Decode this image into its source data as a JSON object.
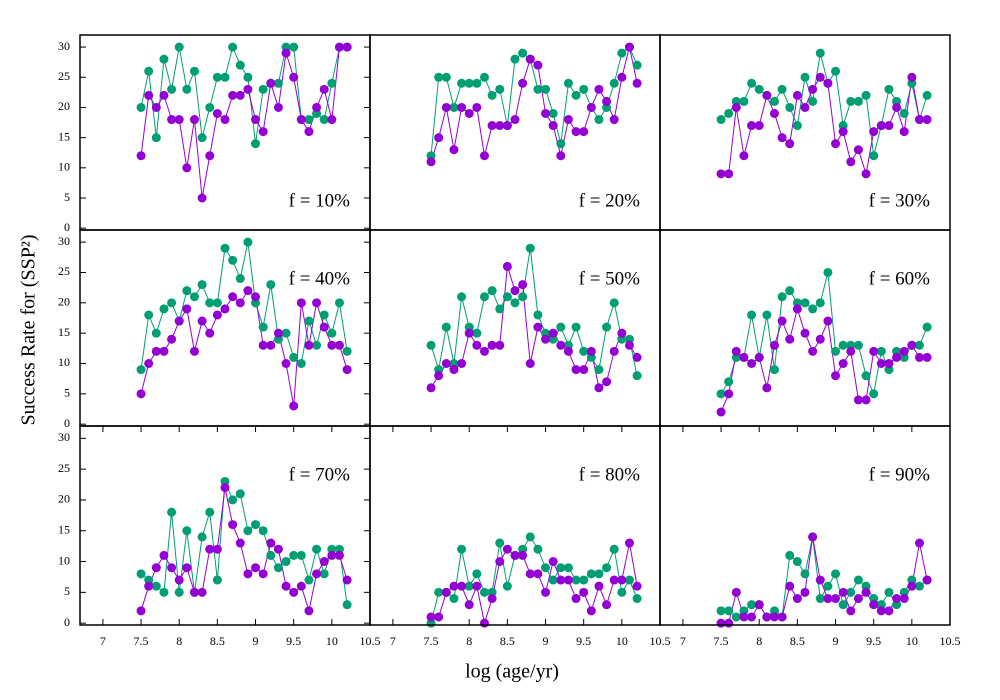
{
  "ylabel": "Success Rate for (SSP²)",
  "xlabel": "log (age/yr)",
  "chart_data": [
    {
      "type": "line",
      "annotation": "f = 10%",
      "xlim": [
        6.7,
        10.5
      ],
      "ylim": [
        -0.3,
        32
      ],
      "yticks": [
        0,
        5,
        10,
        15,
        20,
        25,
        30
      ],
      "x": [
        7.5,
        7.6,
        7.7,
        7.8,
        7.9,
        8,
        8.1,
        8.2,
        8.3,
        8.4,
        8.5,
        8.6,
        8.7,
        8.8,
        8.9,
        9,
        9.1,
        9.2,
        9.3,
        9.4,
        9.5,
        9.6,
        9.7,
        9.8,
        9.9,
        10,
        10.1,
        10.2
      ],
      "series": [
        {
          "color": "#009e73",
          "values": [
            20,
            26,
            15,
            28,
            23,
            30,
            23,
            26,
            15,
            20,
            25,
            25,
            30,
            27,
            25,
            14,
            23,
            24,
            24,
            30,
            30,
            18,
            18,
            19,
            18,
            24,
            30,
            30
          ]
        },
        {
          "color": "#9400d3",
          "values": [
            12,
            22,
            20,
            22,
            18,
            18,
            10,
            18,
            5,
            12,
            19,
            18,
            22,
            22,
            23,
            18,
            16,
            24,
            20,
            29,
            25,
            18,
            16,
            20,
            23,
            18,
            30,
            30
          ]
        }
      ]
    },
    {
      "type": "line",
      "annotation": "f = 20%",
      "xlim": [
        6.7,
        10.5
      ],
      "ylim": [
        -0.3,
        32
      ],
      "x": [
        7.5,
        7.6,
        7.7,
        7.8,
        7.9,
        8,
        8.1,
        8.2,
        8.3,
        8.4,
        8.5,
        8.6,
        8.7,
        8.8,
        8.9,
        9,
        9.1,
        9.2,
        9.3,
        9.4,
        9.5,
        9.6,
        9.7,
        9.8,
        9.9,
        10,
        10.1,
        10.2
      ],
      "series": [
        {
          "color": "#009e73",
          "values": [
            12,
            25,
            25,
            20,
            24,
            24,
            24,
            25,
            22,
            23,
            17,
            28,
            29,
            28,
            23,
            23,
            19,
            14,
            24,
            22,
            23,
            20,
            18,
            20,
            24,
            29,
            30,
            27
          ]
        },
        {
          "color": "#9400d3",
          "values": [
            11,
            15,
            20,
            13,
            20,
            19,
            20,
            12,
            17,
            17,
            17,
            18,
            24,
            28,
            27,
            19,
            17,
            12,
            18,
            16,
            16,
            20,
            23,
            21,
            18,
            25,
            30,
            24
          ]
        }
      ]
    },
    {
      "type": "line",
      "annotation": "f = 30%",
      "xlim": [
        6.7,
        10.5
      ],
      "ylim": [
        -0.3,
        32
      ],
      "x": [
        7.5,
        7.6,
        7.7,
        7.8,
        7.9,
        8,
        8.1,
        8.2,
        8.3,
        8.4,
        8.5,
        8.6,
        8.7,
        8.8,
        8.9,
        9,
        9.1,
        9.2,
        9.3,
        9.4,
        9.5,
        9.6,
        9.7,
        9.8,
        9.9,
        10,
        10.1,
        10.2
      ],
      "series": [
        {
          "color": "#009e73",
          "values": [
            18,
            19,
            21,
            21,
            24,
            23,
            22,
            21,
            23,
            20,
            17,
            25,
            21,
            29,
            24,
            26,
            17,
            21,
            21,
            22,
            12,
            17,
            23,
            21,
            19,
            24,
            18,
            22
          ]
        },
        {
          "color": "#9400d3",
          "values": [
            9,
            9,
            20,
            12,
            17,
            17,
            22,
            19,
            15,
            14,
            22,
            20,
            23,
            25,
            24,
            14,
            16,
            11,
            13,
            9,
            16,
            17,
            17,
            20,
            16,
            25,
            18,
            18
          ]
        }
      ]
    },
    {
      "type": "line",
      "annotation": "f = 40%",
      "xlim": [
        6.7,
        10.5
      ],
      "ylim": [
        -0.3,
        32
      ],
      "yticks": [
        0,
        5,
        10,
        15,
        20,
        25,
        30
      ],
      "x": [
        7.5,
        7.6,
        7.7,
        7.8,
        7.9,
        8,
        8.1,
        8.2,
        8.3,
        8.4,
        8.5,
        8.6,
        8.7,
        8.8,
        8.9,
        9,
        9.1,
        9.2,
        9.3,
        9.4,
        9.5,
        9.6,
        9.7,
        9.8,
        9.9,
        10,
        10.1,
        10.2
      ],
      "series": [
        {
          "color": "#009e73",
          "values": [
            9,
            18,
            15,
            19,
            20,
            17,
            22,
            21,
            23,
            20,
            20,
            29,
            27,
            24,
            30,
            20,
            16,
            23,
            14,
            15,
            11,
            10,
            17,
            13,
            18,
            15,
            20,
            12
          ]
        },
        {
          "color": "#9400d3",
          "values": [
            5,
            10,
            12,
            12,
            14,
            17,
            19,
            12,
            17,
            15,
            18,
            19,
            21,
            20,
            22,
            21,
            13,
            13,
            15,
            10,
            3,
            20,
            13,
            20,
            16,
            13,
            13,
            9
          ]
        }
      ]
    },
    {
      "type": "line",
      "annotation": "f = 50%",
      "xlim": [
        6.7,
        10.5
      ],
      "ylim": [
        -0.3,
        32
      ],
      "x": [
        7.5,
        7.6,
        7.7,
        7.8,
        7.9,
        8,
        8.1,
        8.2,
        8.3,
        8.4,
        8.5,
        8.6,
        8.7,
        8.8,
        8.9,
        9,
        9.1,
        9.2,
        9.3,
        9.4,
        9.5,
        9.6,
        9.7,
        9.8,
        9.9,
        10,
        10.1,
        10.2
      ],
      "series": [
        {
          "color": "#009e73",
          "values": [
            13,
            9,
            16,
            10,
            21,
            16,
            15,
            21,
            22,
            19,
            21,
            20,
            21,
            29,
            18,
            15,
            14,
            16,
            13,
            16,
            12,
            11,
            9,
            16,
            20,
            14,
            14,
            8
          ]
        },
        {
          "color": "#9400d3",
          "values": [
            6,
            8,
            10,
            9,
            10,
            15,
            13,
            12,
            13,
            13,
            26,
            22,
            23,
            10,
            16,
            14,
            15,
            13,
            12,
            9,
            9,
            12,
            6,
            7,
            12,
            15,
            13,
            11
          ]
        }
      ]
    },
    {
      "type": "line",
      "annotation": "f = 60%",
      "xlim": [
        6.7,
        10.5
      ],
      "ylim": [
        -0.3,
        32
      ],
      "x": [
        7.5,
        7.6,
        7.7,
        7.8,
        7.9,
        8,
        8.1,
        8.2,
        8.3,
        8.4,
        8.5,
        8.6,
        8.7,
        8.8,
        8.9,
        9,
        9.1,
        9.2,
        9.3,
        9.4,
        9.5,
        9.6,
        9.7,
        9.8,
        9.9,
        10,
        10.1,
        10.2
      ],
      "series": [
        {
          "color": "#009e73",
          "values": [
            5,
            7,
            11,
            11,
            18,
            11,
            18,
            9,
            21,
            22,
            20,
            20,
            19,
            20,
            25,
            12,
            13,
            13,
            13,
            8,
            5,
            12,
            9,
            12,
            11,
            13,
            13,
            16
          ]
        },
        {
          "color": "#9400d3",
          "values": [
            2,
            5,
            12,
            11,
            10,
            11,
            6,
            13,
            17,
            14,
            19,
            15,
            12,
            14,
            17,
            8,
            10,
            12,
            4,
            4,
            12,
            10,
            10,
            11,
            12,
            13,
            11,
            11
          ]
        }
      ]
    },
    {
      "type": "line",
      "annotation": "f = 70%",
      "xlim": [
        6.7,
        10.5
      ],
      "ylim": [
        -0.3,
        32
      ],
      "yticks": [
        0,
        5,
        10,
        15,
        20,
        25,
        30
      ],
      "xticks": [
        7,
        7.5,
        8,
        8.5,
        9,
        9.5,
        10,
        10.5
      ],
      "x": [
        7.5,
        7.6,
        7.7,
        7.8,
        7.9,
        8,
        8.1,
        8.2,
        8.3,
        8.4,
        8.5,
        8.6,
        8.7,
        8.8,
        8.9,
        9,
        9.1,
        9.2,
        9.3,
        9.4,
        9.5,
        9.6,
        9.7,
        9.8,
        9.9,
        10,
        10.1,
        10.2
      ],
      "series": [
        {
          "color": "#009e73",
          "values": [
            8,
            7,
            6,
            5,
            18,
            5,
            15,
            5,
            14,
            18,
            7,
            23,
            20,
            21,
            15,
            16,
            15,
            11,
            9,
            10,
            11,
            11,
            7,
            12,
            8,
            12,
            12,
            3
          ]
        },
        {
          "color": "#9400d3",
          "values": [
            2,
            6,
            9,
            11,
            9,
            7,
            9,
            5,
            5,
            12,
            12,
            22,
            16,
            13,
            8,
            9,
            8,
            13,
            12,
            6,
            5,
            6,
            2,
            8,
            10,
            11,
            11,
            7
          ]
        }
      ]
    },
    {
      "type": "line",
      "annotation": "f = 80%",
      "xlim": [
        6.7,
        10.5
      ],
      "ylim": [
        -0.3,
        32
      ],
      "xticks": [
        7,
        7.5,
        8,
        8.5,
        9,
        9.5,
        10,
        10.5
      ],
      "x": [
        7.5,
        7.6,
        7.7,
        7.8,
        7.9,
        8,
        8.1,
        8.2,
        8.3,
        8.4,
        8.5,
        8.6,
        8.7,
        8.8,
        8.9,
        9,
        9.1,
        9.2,
        9.3,
        9.4,
        9.5,
        9.6,
        9.7,
        9.8,
        9.9,
        10,
        10.1,
        10.2
      ],
      "series": [
        {
          "color": "#009e73",
          "values": [
            0,
            5,
            5,
            4,
            12,
            6,
            8,
            5,
            5,
            13,
            6,
            11,
            12,
            14,
            12,
            9,
            7,
            9,
            9,
            7,
            7,
            8,
            8,
            9,
            12,
            5,
            7,
            4
          ]
        },
        {
          "color": "#9400d3",
          "values": [
            1,
            1,
            5,
            6,
            6,
            3,
            6,
            0,
            4,
            10,
            12,
            11,
            11,
            8,
            8,
            5,
            10,
            7,
            7,
            4,
            5,
            2,
            6,
            3,
            7,
            7,
            13,
            6
          ]
        }
      ]
    },
    {
      "type": "line",
      "annotation": "f = 90%",
      "xlim": [
        6.7,
        10.5
      ],
      "ylim": [
        -0.3,
        32
      ],
      "xticks": [
        7,
        7.5,
        8,
        8.5,
        9,
        9.5,
        10,
        10.5
      ],
      "x": [
        7.5,
        7.6,
        7.7,
        7.8,
        7.9,
        8,
        8.1,
        8.2,
        8.3,
        8.4,
        8.5,
        8.6,
        8.7,
        8.8,
        8.9,
        9,
        9.1,
        9.2,
        9.3,
        9.4,
        9.5,
        9.6,
        9.7,
        9.8,
        9.9,
        10,
        10.1,
        10.2
      ],
      "series": [
        {
          "color": "#009e73",
          "values": [
            2,
            2,
            1,
            2,
            3,
            3,
            1,
            2,
            1,
            11,
            10,
            8,
            14,
            4,
            6,
            8,
            3,
            5,
            7,
            6,
            4,
            3,
            5,
            3,
            5,
            7,
            6,
            7
          ]
        },
        {
          "color": "#9400d3",
          "values": [
            0,
            0,
            5,
            1,
            1,
            3,
            1,
            1,
            1,
            6,
            4,
            5,
            14,
            7,
            4,
            4,
            5,
            2,
            4,
            5,
            3,
            2,
            2,
            4,
            4,
            6,
            13,
            7
          ]
        }
      ]
    }
  ]
}
